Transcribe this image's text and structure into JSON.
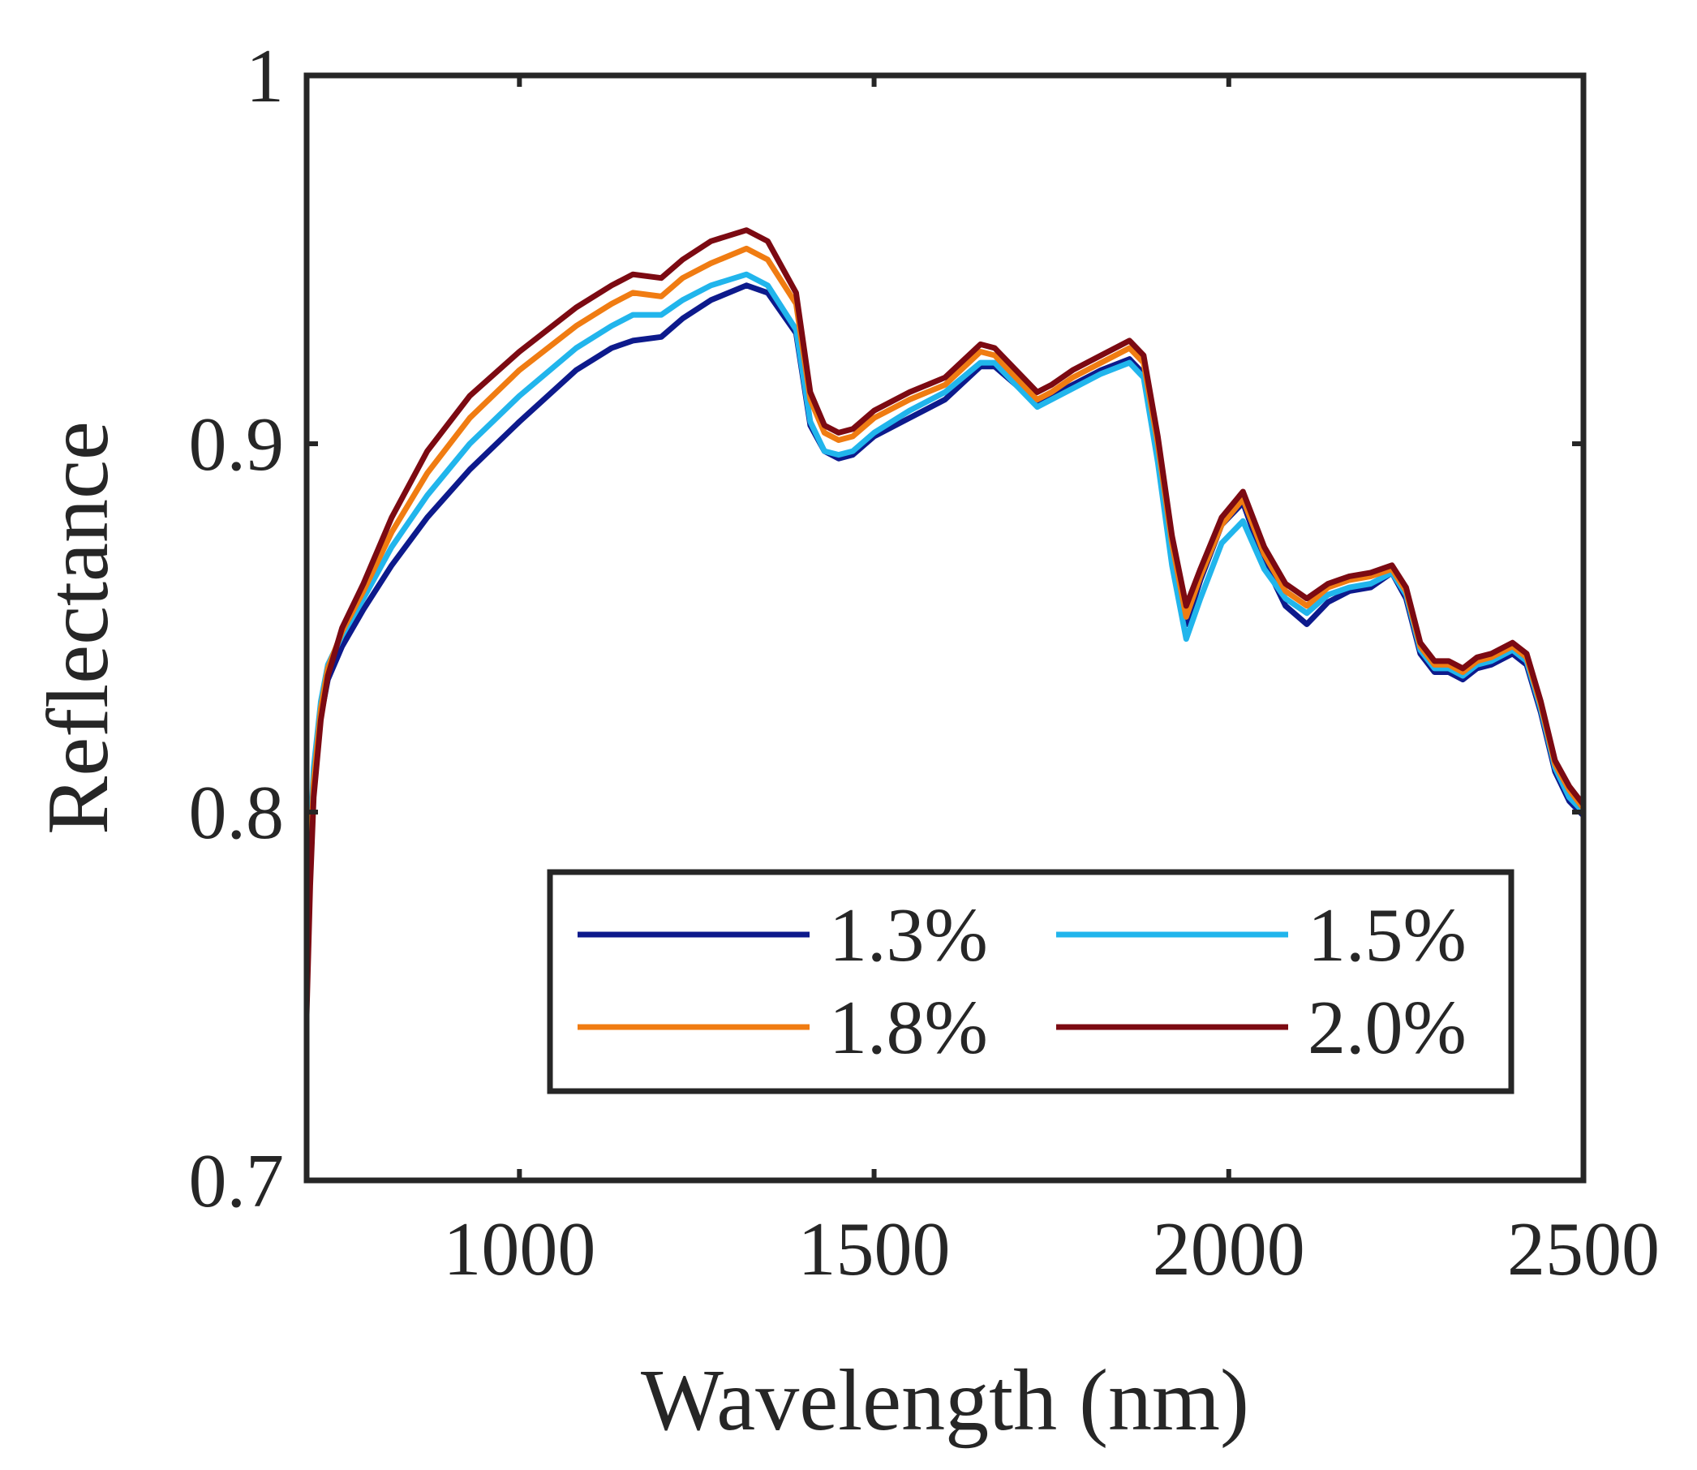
{
  "chart_data": {
    "type": "line",
    "xlabel": "Wavelength (nm)",
    "ylabel": "Reflectance",
    "xlim": [
      700,
      2500
    ],
    "ylim": [
      0.7,
      1.0
    ],
    "xticks": [
      1000,
      1500,
      2000,
      2500
    ],
    "xtick_labels": [
      "1000",
      "1500",
      "2000",
      "2500"
    ],
    "yticks": [
      0.7,
      0.8,
      0.9,
      1.0
    ],
    "ytick_labels": [
      "0.7",
      "0.8",
      "0.9",
      "1"
    ],
    "grid": false,
    "legend": {
      "position": "bottom-right",
      "columns": 2,
      "order": [
        0,
        2,
        1,
        3
      ]
    },
    "x": [
      700,
      705,
      710,
      720,
      730,
      750,
      780,
      820,
      870,
      930,
      1000,
      1080,
      1130,
      1160,
      1200,
      1230,
      1270,
      1320,
      1350,
      1390,
      1410,
      1430,
      1450,
      1470,
      1500,
      1550,
      1600,
      1650,
      1670,
      1700,
      1730,
      1750,
      1780,
      1820,
      1860,
      1880,
      1900,
      1920,
      1940,
      1960,
      1990,
      2020,
      2050,
      2080,
      2110,
      2140,
      2170,
      2200,
      2230,
      2250,
      2270,
      2290,
      2310,
      2330,
      2350,
      2370,
      2400,
      2420,
      2440,
      2460,
      2480,
      2500
    ],
    "series": [
      {
        "name": "1.3%",
        "color": "#0d1a8c",
        "values": [
          0.768,
          0.79,
          0.806,
          0.826,
          0.836,
          0.845,
          0.855,
          0.867,
          0.88,
          0.893,
          0.906,
          0.92,
          0.926,
          0.928,
          0.929,
          0.934,
          0.939,
          0.943,
          0.941,
          0.93,
          0.905,
          0.898,
          0.896,
          0.897,
          0.902,
          0.907,
          0.912,
          0.921,
          0.921,
          0.916,
          0.911,
          0.913,
          0.916,
          0.92,
          0.923,
          0.919,
          0.898,
          0.872,
          0.851,
          0.863,
          0.878,
          0.884,
          0.868,
          0.856,
          0.851,
          0.857,
          0.86,
          0.861,
          0.865,
          0.858,
          0.843,
          0.838,
          0.838,
          0.836,
          0.839,
          0.84,
          0.843,
          0.84,
          0.827,
          0.811,
          0.803,
          0.799
        ]
      },
      {
        "name": "1.5%",
        "color": "#21b5ec",
        "values": [
          0.765,
          0.792,
          0.812,
          0.83,
          0.84,
          0.848,
          0.858,
          0.872,
          0.886,
          0.9,
          0.913,
          0.926,
          0.932,
          0.935,
          0.935,
          0.939,
          0.943,
          0.946,
          0.943,
          0.931,
          0.906,
          0.898,
          0.897,
          0.898,
          0.903,
          0.909,
          0.914,
          0.922,
          0.922,
          0.916,
          0.91,
          0.912,
          0.915,
          0.919,
          0.922,
          0.918,
          0.895,
          0.867,
          0.847,
          0.858,
          0.873,
          0.879,
          0.866,
          0.858,
          0.854,
          0.859,
          0.861,
          0.862,
          0.865,
          0.859,
          0.844,
          0.839,
          0.839,
          0.837,
          0.84,
          0.841,
          0.844,
          0.841,
          0.828,
          0.812,
          0.804,
          0.8
        ]
      },
      {
        "name": "1.8%",
        "color": "#f07c12",
        "values": [
          0.755,
          0.786,
          0.808,
          0.828,
          0.839,
          0.849,
          0.86,
          0.876,
          0.892,
          0.907,
          0.92,
          0.932,
          0.938,
          0.941,
          0.94,
          0.945,
          0.949,
          0.953,
          0.95,
          0.938,
          0.912,
          0.903,
          0.901,
          0.902,
          0.907,
          0.912,
          0.916,
          0.925,
          0.924,
          0.918,
          0.912,
          0.914,
          0.918,
          0.922,
          0.926,
          0.922,
          0.9,
          0.873,
          0.853,
          0.864,
          0.878,
          0.885,
          0.87,
          0.86,
          0.856,
          0.861,
          0.863,
          0.864,
          0.866,
          0.86,
          0.845,
          0.84,
          0.84,
          0.838,
          0.841,
          0.842,
          0.845,
          0.842,
          0.829,
          0.813,
          0.806,
          0.801
        ]
      },
      {
        "name": "2.0%",
        "color": "#7c0a12",
        "values": [
          0.745,
          0.78,
          0.804,
          0.825,
          0.837,
          0.85,
          0.862,
          0.88,
          0.898,
          0.913,
          0.925,
          0.937,
          0.943,
          0.946,
          0.945,
          0.95,
          0.955,
          0.958,
          0.955,
          0.941,
          0.914,
          0.905,
          0.903,
          0.904,
          0.909,
          0.914,
          0.918,
          0.927,
          0.926,
          0.92,
          0.914,
          0.916,
          0.92,
          0.924,
          0.928,
          0.924,
          0.902,
          0.875,
          0.856,
          0.866,
          0.88,
          0.887,
          0.872,
          0.862,
          0.858,
          0.862,
          0.864,
          0.865,
          0.867,
          0.861,
          0.846,
          0.841,
          0.841,
          0.839,
          0.842,
          0.843,
          0.846,
          0.843,
          0.83,
          0.814,
          0.807,
          0.802
        ]
      }
    ]
  }
}
